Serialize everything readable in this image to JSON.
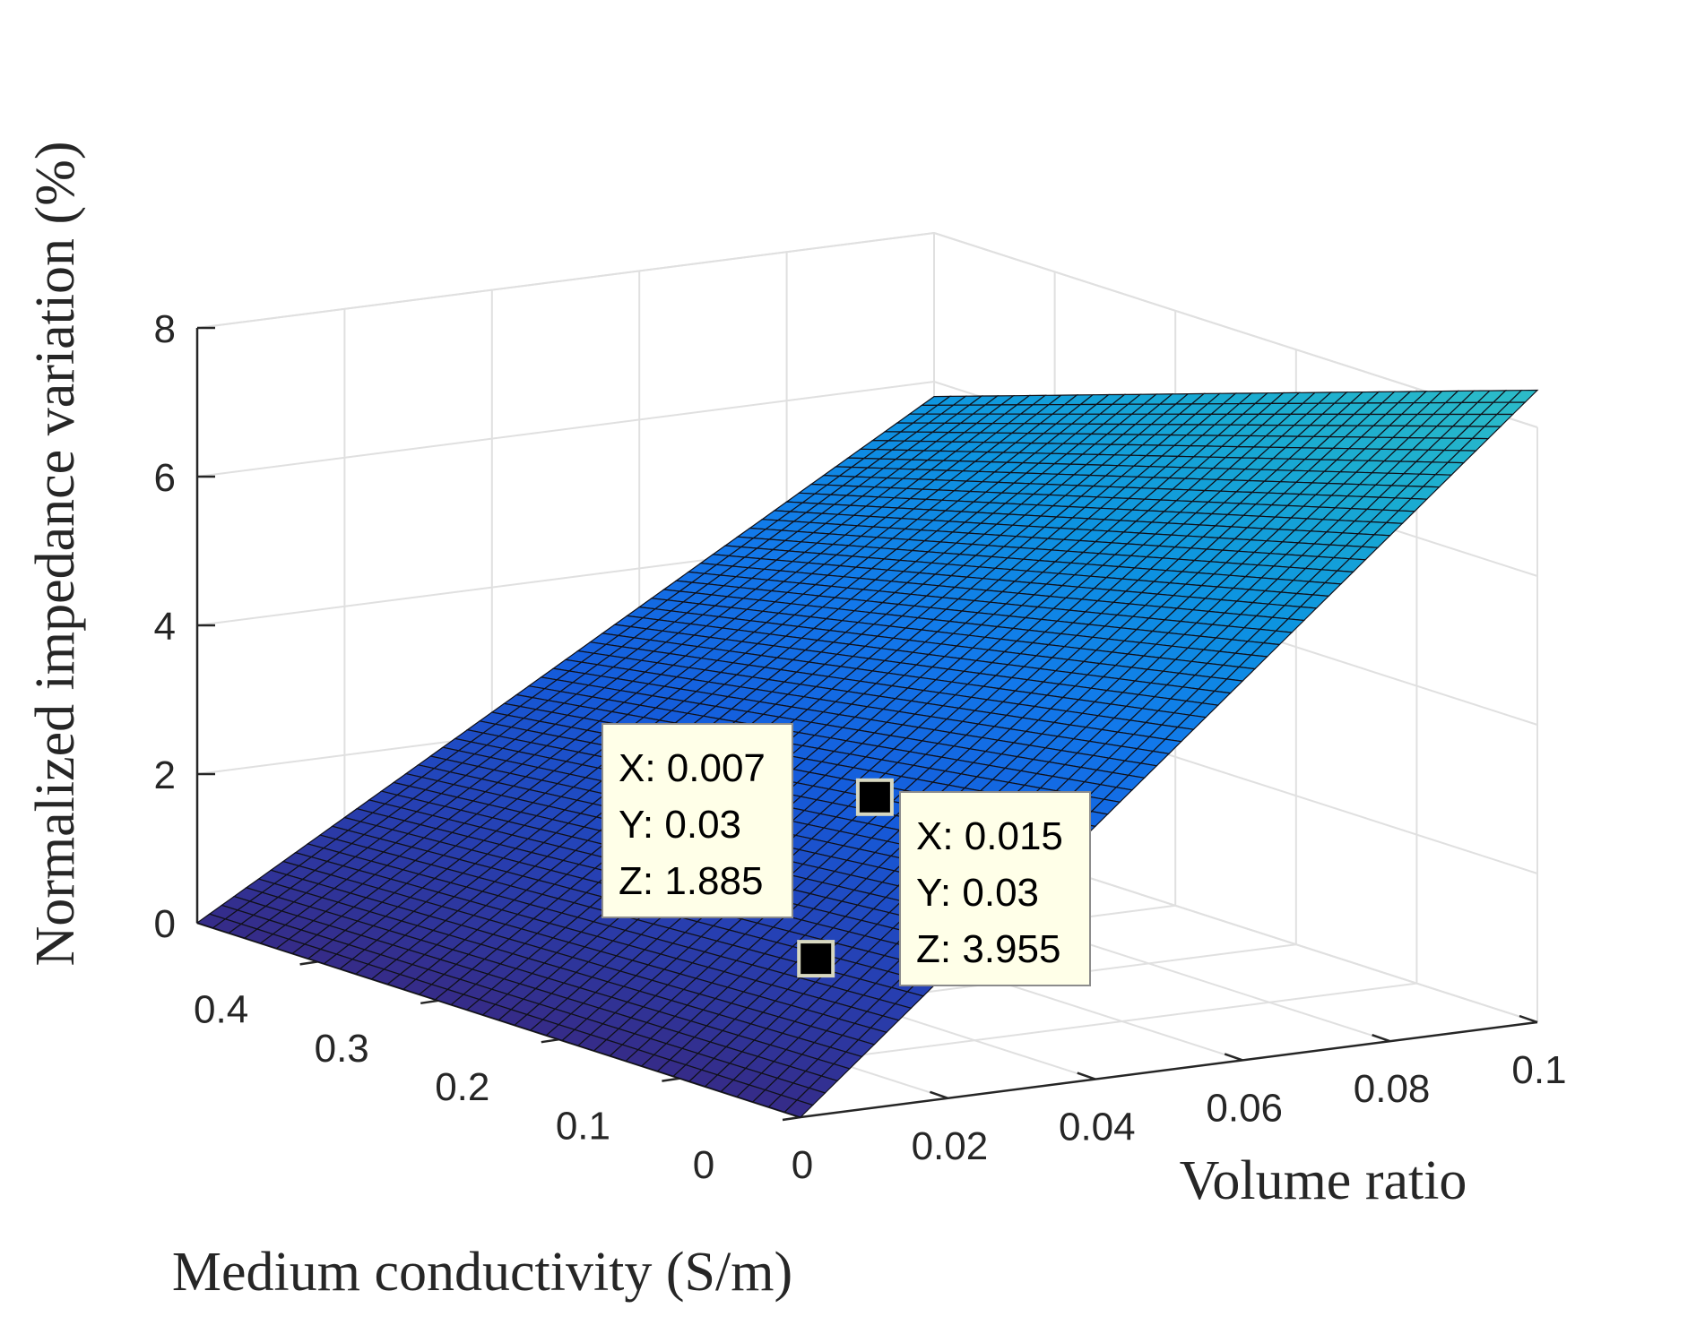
{
  "chart_data": {
    "type": "surface",
    "xlabel": "Volume ratio",
    "ylabel": "Medium conductivity (S/m)",
    "zlabel": "Normalized impedance variation (%)",
    "xlim": [
      0,
      0.1
    ],
    "ylim": [
      0,
      0.5
    ],
    "zlim": [
      0,
      8
    ],
    "grid": true,
    "x_ticks": [
      "0",
      "0.02",
      "0.04",
      "0.06",
      "0.08",
      "0.1"
    ],
    "y_ticks": [
      "0",
      "0.1",
      "0.2",
      "0.3",
      "0.4"
    ],
    "z_ticks": [
      "0",
      "2",
      "4",
      "6",
      "8"
    ],
    "surface": {
      "x_range": [
        0,
        0.1
      ],
      "y_range": [
        0,
        0.5
      ],
      "z_formula": "approximately proportional to volume ratio, near-zero dependence on conductivity; z rises to about 8.5 at x=0.1, y=0",
      "corner_values": {
        "x0_y0": 0,
        "x0_y05": 0,
        "x01_y0": 8.5,
        "x01_y05": 5.8
      },
      "colormap": "parula (dark navy to cyan)"
    },
    "datatips": [
      {
        "x_label": "X: 0.007",
        "y_label": "Y: 0.03",
        "z_label": "Z: 1.885",
        "x": 0.007,
        "y": 0.03,
        "z": 1.885
      },
      {
        "x_label": "X: 0.015",
        "y_label": "Y: 0.03",
        "z_label": "Z: 3.955",
        "x": 0.015,
        "y": 0.03,
        "z": 3.955
      }
    ]
  }
}
